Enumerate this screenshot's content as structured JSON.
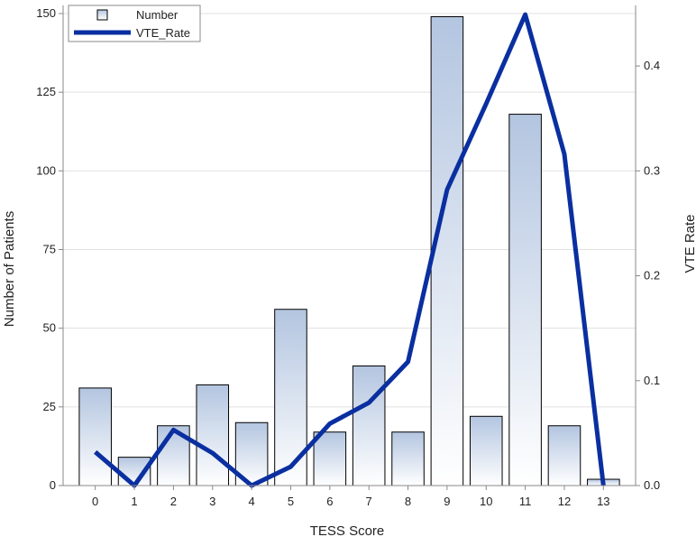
{
  "chart_data": {
    "type": "bar",
    "categories": [
      "0",
      "1",
      "2",
      "3",
      "4",
      "5",
      "6",
      "7",
      "8",
      "9",
      "10",
      "11",
      "12",
      "13"
    ],
    "series": [
      {
        "name": "Number",
        "type": "bar",
        "axis": "left",
        "values": [
          31,
          9,
          19,
          32,
          20,
          56,
          17,
          38,
          17,
          149,
          22,
          118,
          19,
          2
        ]
      },
      {
        "name": "VTE_Rate",
        "type": "line",
        "axis": "right",
        "values": [
          0.032,
          0.0,
          0.053,
          0.031,
          0.0,
          0.018,
          0.059,
          0.079,
          0.118,
          0.282,
          0.364,
          0.449,
          0.316,
          0.0
        ]
      }
    ],
    "xlabel": "TESS Score",
    "ylabel": "Number of Patients",
    "y2label": "VTE Rate",
    "ylim": [
      0,
      150
    ],
    "y2lim": [
      0,
      0.45
    ],
    "yticks": [
      "0",
      "25",
      "50",
      "75",
      "100",
      "125",
      "150"
    ],
    "y2ticks": [
      "0.0",
      "0.1",
      "0.2",
      "0.3",
      "0.4"
    ],
    "grid": true,
    "legend": "top-left",
    "colors": {
      "bar_fill_top": "#b3c5e0",
      "bar_fill_bottom": "#ffffff",
      "bar_stroke": "#000000",
      "line": "#0a2fa0",
      "grid": "#e0e0e0",
      "axis": "#888888"
    }
  }
}
